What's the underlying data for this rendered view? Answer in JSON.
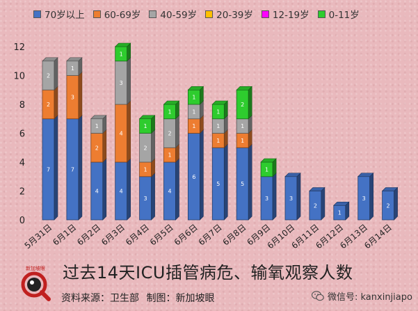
{
  "legend": [
    {
      "label": "70岁以上",
      "color": "#4472c4"
    },
    {
      "label": "60-69岁",
      "color": "#ed7d31"
    },
    {
      "label": "40-59岁",
      "color": "#a5a5a5"
    },
    {
      "label": "20-39岁",
      "color": "#ffc000"
    },
    {
      "label": "12-19岁",
      "color": "#ff00ff"
    },
    {
      "label": "0-11岁",
      "color": "#2ecc2e"
    }
  ],
  "footer": {
    "title": "过去14天ICU插管病危、输氧观察人数",
    "source_label": "资料来源：卫生部",
    "maker_label": "制图：新加坡眼",
    "logo_text": "新加坡眼",
    "wechat": "微信号: kanxinjiapo"
  },
  "chart_data": {
    "type": "bar",
    "stacked": true,
    "categories": [
      "5月31日",
      "6月1日",
      "6月2日",
      "6月3日",
      "6月4日",
      "6月5日",
      "6月6日",
      "6月7日",
      "6月8日",
      "6月9日",
      "6月10日",
      "6月11日",
      "6月12日",
      "6月13日",
      "6月14日"
    ],
    "series": [
      {
        "name": "70岁以上",
        "color": "#4472c4",
        "values": [
          7,
          7,
          4,
          4,
          3,
          4,
          6,
          5,
          5,
          3,
          3,
          2,
          1,
          3,
          2
        ]
      },
      {
        "name": "60-69岁",
        "color": "#ed7d31",
        "values": [
          2,
          3,
          2,
          4,
          1,
          1,
          1,
          1,
          1,
          0,
          0,
          0,
          0,
          0,
          0
        ]
      },
      {
        "name": "40-59岁",
        "color": "#a5a5a5",
        "values": [
          2,
          1,
          1,
          3,
          2,
          2,
          1,
          1,
          1,
          0,
          0,
          0,
          0,
          0,
          0
        ]
      },
      {
        "name": "20-39岁",
        "color": "#ffc000",
        "values": [
          0,
          0,
          0,
          0,
          0,
          0,
          0,
          0,
          0,
          0,
          0,
          0,
          0,
          0,
          0
        ]
      },
      {
        "name": "12-19岁",
        "color": "#ff00ff",
        "values": [
          0,
          0,
          0,
          0,
          0,
          0,
          0,
          0,
          0,
          0,
          0,
          0,
          0,
          0,
          0
        ]
      },
      {
        "name": "0-11岁",
        "color": "#2ecc2e",
        "values": [
          0,
          0,
          0,
          1,
          1,
          1,
          1,
          1,
          2,
          1,
          0,
          0,
          0,
          0,
          0
        ]
      }
    ],
    "ylim": [
      0,
      12
    ],
    "yticks": [
      0,
      2,
      4,
      6,
      8,
      10,
      12
    ],
    "grid": false,
    "legend_position": "top"
  }
}
